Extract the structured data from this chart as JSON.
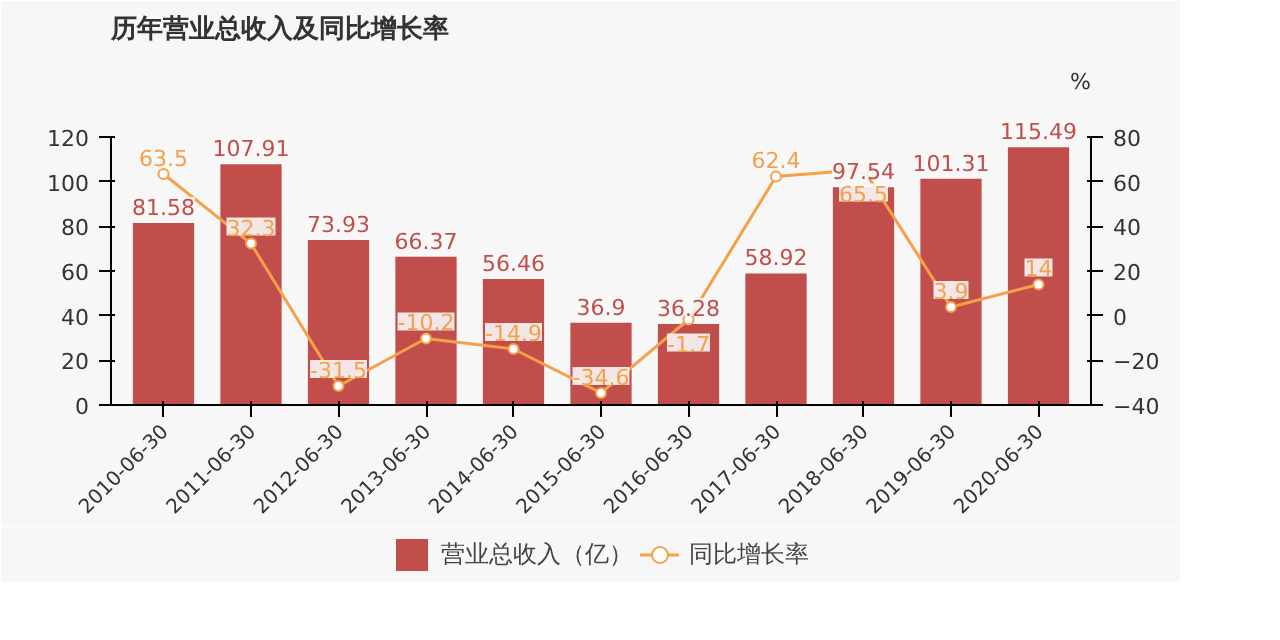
{
  "chart_data": {
    "type": "bar",
    "title": "历年营业总收入及同比增长率",
    "y2label": "%",
    "categories": [
      "2010-06-30",
      "2011-06-30",
      "2012-06-30",
      "2013-06-30",
      "2014-06-30",
      "2015-06-30",
      "2016-06-30",
      "2017-06-30",
      "2018-06-30",
      "2019-06-30",
      "2020-06-30"
    ],
    "series": [
      {
        "name": "营业总收入（亿）",
        "color": "#c14e4b",
        "values": [
          81.58,
          107.91,
          73.93,
          66.37,
          56.46,
          36.9,
          36.28,
          58.92,
          97.54,
          101.31,
          115.49
        ]
      },
      {
        "name": "同比增长率",
        "type": "line",
        "axis": "y2",
        "color": "#f5a04a",
        "marker": "circle",
        "values": [
          63.5,
          32.3,
          -31.5,
          -10.2,
          -14.9,
          -34.6,
          -1.7,
          62.4,
          65.5,
          3.9,
          14
        ]
      }
    ],
    "ylim": [
      0,
      120
    ],
    "yticks": [
      0,
      20,
      40,
      60,
      80,
      100,
      120
    ],
    "y2lim": [
      -40,
      80
    ],
    "y2ticks": [
      -40,
      -20,
      0,
      20,
      40,
      60,
      80
    ],
    "data_labels": true,
    "grid": false,
    "legend": "bottom"
  }
}
